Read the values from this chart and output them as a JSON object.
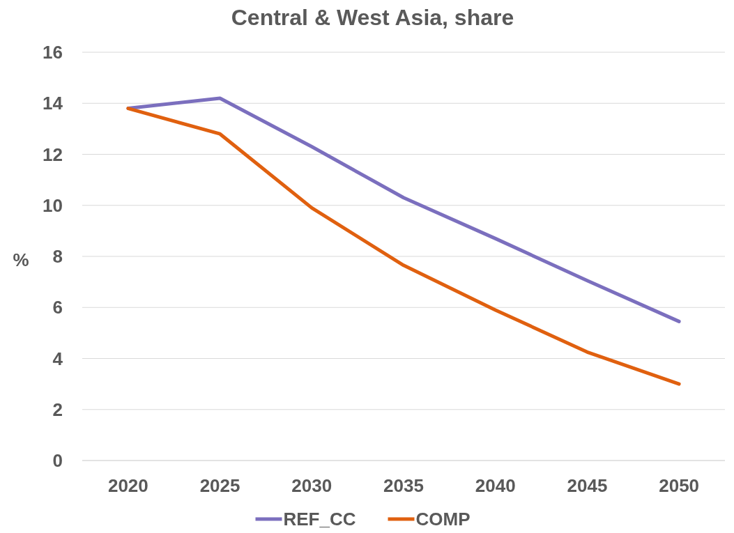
{
  "chart_data": {
    "type": "line",
    "title": "Central & West Asia, share",
    "ylabel": "%",
    "categories": [
      "2020",
      "2025",
      "2030",
      "2035",
      "2040",
      "2045",
      "2050"
    ],
    "series": [
      {
        "name": "REF_CC",
        "color": "#7b6fbe",
        "values": [
          13.8,
          14.2,
          12.3,
          10.3,
          8.7,
          7.05,
          5.45
        ]
      },
      {
        "name": "COMP",
        "color": "#e0600f",
        "values": [
          13.8,
          12.8,
          9.9,
          7.65,
          5.9,
          4.25,
          3.0
        ]
      }
    ],
    "ylim": [
      0,
      16
    ],
    "yticks": [
      0,
      2,
      4,
      6,
      8,
      10,
      12,
      14,
      16
    ],
    "grid": "y",
    "legend": "bottom",
    "marker": "none",
    "line_style": "solid"
  }
}
